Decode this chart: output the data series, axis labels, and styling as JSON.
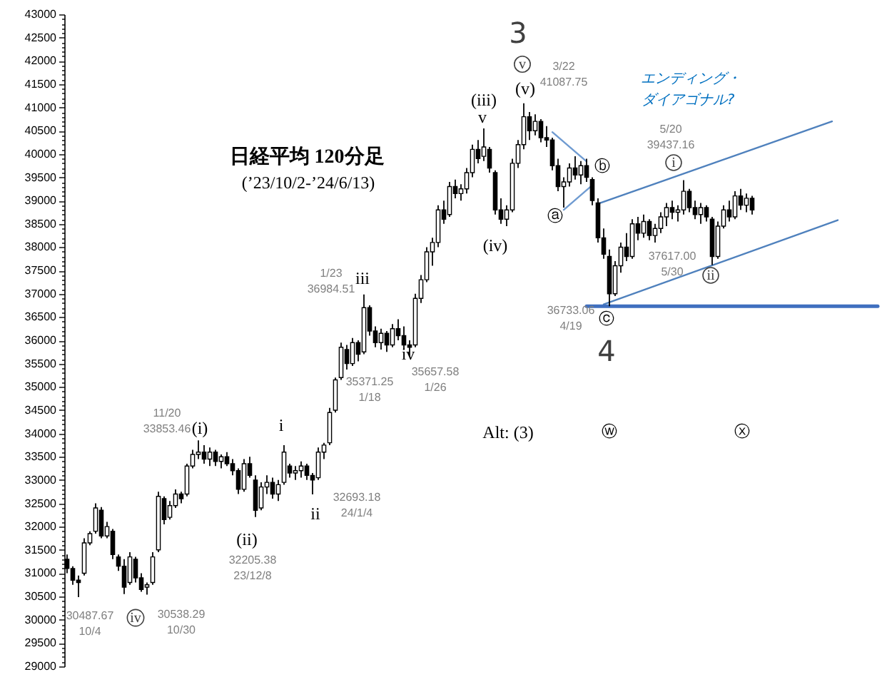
{
  "chart_data": {
    "type": "candlestick",
    "title": "日経平均 120分足",
    "subtitle": "(’23/10/2-’24/6/13)",
    "color": "#000000",
    "categories": [
      null,
      null,
      null,
      null,
      null,
      null,
      null,
      null,
      null,
      null,
      null,
      null,
      null,
      null,
      null,
      null,
      null,
      null,
      null,
      null,
      null,
      null,
      null,
      null,
      null,
      null,
      null,
      null,
      null,
      null,
      null,
      null,
      null,
      null,
      null,
      null,
      null,
      null,
      null,
      null,
      null,
      null,
      null,
      null,
      null,
      null,
      null,
      null,
      null,
      null,
      null,
      null,
      null,
      null,
      null,
      null,
      null,
      null,
      null,
      null,
      null,
      null,
      null,
      null,
      null,
      null,
      null,
      null,
      null,
      null,
      null,
      null,
      null,
      null,
      null,
      null,
      null,
      null,
      null,
      null,
      null,
      null,
      null,
      null,
      null,
      null,
      null,
      null,
      null,
      null,
      null,
      null,
      null,
      null,
      null,
      null,
      null,
      null,
      null,
      null,
      null,
      null,
      null,
      null,
      null,
      null,
      null,
      null,
      null,
      null,
      null,
      null,
      null,
      null,
      null,
      null,
      null,
      null,
      null,
      null,
      null,
      null,
      null,
      null,
      null,
      null,
      null,
      null,
      null,
      null,
      null,
      null,
      null,
      null,
      null,
      null,
      null,
      null,
      null,
      null,
      null,
      null,
      null
    ],
    "ohlc": [
      [
        31300,
        31400,
        31000,
        31100
      ],
      [
        31100,
        31150,
        30750,
        30850
      ],
      [
        30850,
        30950,
        30487.67,
        30800
      ],
      [
        31000,
        31750,
        30950,
        31650
      ],
      [
        31650,
        31900,
        31600,
        31850
      ],
      [
        31900,
        32500,
        31850,
        32400
      ],
      [
        32350,
        32420,
        31750,
        31800
      ],
      [
        31800,
        32100,
        31750,
        32000
      ],
      [
        31900,
        31950,
        31300,
        31400
      ],
      [
        31350,
        31400,
        31050,
        31150
      ],
      [
        31150,
        31300,
        30550,
        30700
      ],
      [
        30800,
        31450,
        30750,
        31350
      ],
      [
        31300,
        31350,
        30800,
        30900
      ],
      [
        30900,
        31000,
        30600,
        30650
      ],
      [
        30700,
        30800,
        30538.29,
        30750
      ],
      [
        30800,
        31450,
        30750,
        31350
      ],
      [
        31500,
        32750,
        31450,
        32650
      ],
      [
        32600,
        32650,
        32050,
        32150
      ],
      [
        32200,
        32550,
        32150,
        32450
      ],
      [
        32450,
        32800,
        32400,
        32700
      ],
      [
        32700,
        32750,
        32500,
        32600
      ],
      [
        32700,
        33350,
        32650,
        33300
      ],
      [
        33300,
        33650,
        33250,
        33550
      ],
      [
        33550,
        33853.46,
        33450,
        33600
      ],
      [
        33600,
        33750,
        33350,
        33450
      ],
      [
        33450,
        33700,
        33300,
        33600
      ],
      [
        33600,
        33650,
        33300,
        33400
      ],
      [
        33400,
        33550,
        33250,
        33500
      ],
      [
        33500,
        33600,
        33300,
        33350
      ],
      [
        33350,
        33450,
        33100,
        33200
      ],
      [
        33200,
        33250,
        32700,
        32800
      ],
      [
        32800,
        33450,
        32750,
        33350
      ],
      [
        33350,
        33500,
        33050,
        33100
      ],
      [
        33000,
        33100,
        32205.38,
        32350
      ],
      [
        32400,
        32950,
        32350,
        32850
      ],
      [
        32850,
        33100,
        32700,
        32950
      ],
      [
        32950,
        33050,
        32600,
        32700
      ],
      [
        32700,
        33000,
        32550,
        32900
      ],
      [
        32950,
        33750,
        32900,
        33600
      ],
      [
        33300,
        33350,
        33050,
        33150
      ],
      [
        33150,
        33300,
        33000,
        33200
      ],
      [
        33200,
        33400,
        33050,
        33300
      ],
      [
        33300,
        33350,
        33000,
        33100
      ],
      [
        33100,
        33150,
        32693.18,
        33000
      ],
      [
        33050,
        33700,
        33000,
        33600
      ],
      [
        33600,
        33800,
        33450,
        33750
      ],
      [
        33800,
        34550,
        33750,
        34450
      ],
      [
        34500,
        35200,
        34450,
        35150
      ],
      [
        35200,
        35950,
        35150,
        35850
      ],
      [
        35800,
        35900,
        35371.25,
        35500
      ],
      [
        35500,
        36050,
        35450,
        35950
      ],
      [
        35950,
        36000,
        35550,
        35700
      ],
      [
        35750,
        36984.51,
        35700,
        36700
      ],
      [
        36700,
        36750,
        36100,
        36200
      ],
      [
        36200,
        36300,
        35850,
        35950
      ],
      [
        35950,
        36250,
        35800,
        36150
      ],
      [
        36150,
        36200,
        35750,
        35900
      ],
      [
        35900,
        36350,
        35850,
        36250
      ],
      [
        36250,
        36450,
        36000,
        36100
      ],
      [
        36100,
        36300,
        35800,
        35900
      ],
      [
        35900,
        36000,
        35657.58,
        35850
      ],
      [
        35900,
        37000,
        35850,
        36900
      ],
      [
        36900,
        37400,
        36800,
        37300
      ],
      [
        37300,
        38000,
        37250,
        37900
      ],
      [
        37900,
        38200,
        37600,
        38100
      ],
      [
        38100,
        38900,
        38000,
        38800
      ],
      [
        38800,
        39000,
        38500,
        38600
      ],
      [
        38700,
        39400,
        38650,
        39300
      ],
      [
        39300,
        39450,
        39050,
        39150
      ],
      [
        39150,
        39350,
        39000,
        39250
      ],
      [
        39250,
        39700,
        39150,
        39600
      ],
      [
        39600,
        40200,
        39500,
        40100
      ],
      [
        40100,
        40300,
        39800,
        39900
      ],
      [
        39950,
        40550,
        39850,
        40150
      ],
      [
        40100,
        40150,
        39600,
        39700
      ],
      [
        39600,
        39650,
        38700,
        38800
      ],
      [
        38800,
        39050,
        38500,
        38600
      ],
      [
        38600,
        38900,
        38450,
        38800
      ],
      [
        38800,
        39900,
        38750,
        39800
      ],
      [
        39800,
        40300,
        39700,
        40200
      ],
      [
        40200,
        41087.75,
        40100,
        40800
      ],
      [
        40800,
        40900,
        40300,
        40500
      ],
      [
        40500,
        40850,
        40400,
        40700
      ],
      [
        40700,
        40750,
        40250,
        40350
      ],
      [
        40350,
        40600,
        40150,
        40300
      ],
      [
        40300,
        40350,
        39650,
        39750
      ],
      [
        39750,
        39900,
        39200,
        39300
      ],
      [
        39300,
        39500,
        38850,
        39400
      ],
      [
        39400,
        39800,
        39300,
        39700
      ],
      [
        39700,
        39950,
        39450,
        39550
      ],
      [
        39550,
        39850,
        39350,
        39750
      ],
      [
        39750,
        39900,
        39400,
        39500
      ],
      [
        39450,
        39500,
        38900,
        39000
      ],
      [
        38950,
        39050,
        38100,
        38200
      ],
      [
        38200,
        38400,
        37750,
        37850
      ],
      [
        37800,
        37950,
        36733.06,
        37000
      ],
      [
        37000,
        37700,
        36950,
        37600
      ],
      [
        37600,
        38100,
        37450,
        38000
      ],
      [
        38000,
        38300,
        37700,
        37800
      ],
      [
        37800,
        38600,
        37750,
        38500
      ],
      [
        38500,
        38650,
        38150,
        38300
      ],
      [
        38300,
        38700,
        38200,
        38550
      ],
      [
        38550,
        38600,
        38150,
        38250
      ],
      [
        38250,
        38500,
        38100,
        38400
      ],
      [
        38400,
        38750,
        38300,
        38650
      ],
      [
        38650,
        38950,
        38450,
        38850
      ],
      [
        38850,
        39000,
        38600,
        38750
      ],
      [
        38750,
        38900,
        38550,
        38800
      ],
      [
        38800,
        39437.16,
        38700,
        39200
      ],
      [
        39200,
        39250,
        38750,
        38850
      ],
      [
        38850,
        39000,
        38600,
        38700
      ],
      [
        38700,
        38950,
        38500,
        38850
      ],
      [
        38850,
        38900,
        38550,
        38650
      ],
      [
        38600,
        38650,
        37617.0,
        37800
      ],
      [
        37800,
        38550,
        37750,
        38450
      ],
      [
        38450,
        38900,
        38400,
        38800
      ],
      [
        38800,
        39000,
        38550,
        38650
      ],
      [
        38650,
        39200,
        38600,
        39100
      ],
      [
        39100,
        39250,
        38800,
        38900
      ],
      [
        38900,
        39150,
        38750,
        39050
      ],
      [
        39050,
        39100,
        38700,
        38800
      ],
      null,
      null,
      null,
      null,
      null,
      null,
      null,
      null,
      null,
      null,
      null,
      null,
      null,
      null,
      null,
      null,
      null,
      null,
      null,
      null,
      null,
      null
    ],
    "series": [
      {
        "type": "line",
        "color": "#4f81bd",
        "values": [
          null,
          null,
          null,
          null,
          null,
          null,
          null,
          null,
          null,
          null,
          null,
          null,
          null,
          null,
          null,
          null,
          null,
          null,
          null,
          null,
          null,
          null,
          null,
          null,
          null,
          null,
          null,
          null,
          null,
          null,
          null,
          null,
          null,
          null,
          null,
          null,
          null,
          null,
          null,
          null,
          null,
          null,
          null,
          null,
          null,
          null,
          null,
          null,
          null,
          null,
          null,
          null,
          null,
          null,
          null,
          null,
          null,
          null,
          null,
          null,
          null,
          null,
          null,
          null,
          null,
          null,
          null,
          null,
          null,
          null,
          null,
          null,
          null,
          null,
          null,
          null,
          null,
          null,
          null,
          null,
          null,
          null,
          null,
          null,
          null,
          null,
          null,
          null,
          null,
          null,
          null,
          null,
          null,
          38930,
          null,
          null,
          null,
          null,
          null,
          null,
          null,
          null,
          null,
          null,
          null,
          null,
          null,
          null,
          null,
          null,
          null,
          null,
          null,
          null,
          null,
          null,
          null,
          null,
          null,
          null,
          null,
          null,
          null,
          null,
          null,
          null,
          null,
          null,
          null,
          null,
          null,
          null,
          null,
          null,
          40700,
          null,
          null,
          null,
          null,
          null,
          null,
          null,
          null
        ]
      },
      {
        "type": "line",
        "color": "#4f81bd",
        "values": [
          null,
          null,
          null,
          null,
          null,
          null,
          null,
          null,
          null,
          null,
          null,
          null,
          null,
          null,
          null,
          null,
          null,
          null,
          null,
          null,
          null,
          null,
          null,
          null,
          null,
          null,
          null,
          null,
          null,
          null,
          null,
          null,
          null,
          null,
          null,
          null,
          null,
          null,
          null,
          null,
          null,
          null,
          null,
          null,
          null,
          null,
          null,
          null,
          null,
          null,
          null,
          null,
          null,
          null,
          null,
          null,
          null,
          null,
          null,
          null,
          null,
          null,
          null,
          null,
          null,
          null,
          null,
          null,
          null,
          null,
          null,
          null,
          null,
          null,
          null,
          null,
          null,
          null,
          null,
          null,
          null,
          null,
          null,
          null,
          null,
          null,
          null,
          null,
          null,
          null,
          null,
          null,
          null,
          null,
          36770,
          null,
          null,
          null,
          null,
          null,
          null,
          null,
          null,
          null,
          null,
          null,
          null,
          null,
          null,
          null,
          null,
          null,
          null,
          null,
          null,
          null,
          null,
          null,
          null,
          null,
          null,
          null,
          null,
          null,
          null,
          null,
          null,
          null,
          null,
          null,
          null,
          null,
          null,
          null,
          null,
          38580,
          null,
          null,
          null,
          null,
          null,
          null,
          null
        ]
      },
      {
        "type": "line",
        "color": "#3f6fbf",
        "values": [
          null,
          null,
          null,
          null,
          null,
          null,
          null,
          null,
          null,
          null,
          null,
          null,
          null,
          null,
          null,
          null,
          null,
          null,
          null,
          null,
          null,
          null,
          null,
          null,
          null,
          null,
          null,
          null,
          null,
          null,
          null,
          null,
          null,
          null,
          null,
          null,
          null,
          null,
          null,
          null,
          null,
          null,
          null,
          null,
          null,
          null,
          null,
          null,
          null,
          null,
          null,
          null,
          null,
          null,
          null,
          null,
          null,
          null,
          null,
          null,
          null,
          null,
          null,
          null,
          null,
          null,
          null,
          null,
          null,
          null,
          null,
          null,
          null,
          null,
          null,
          null,
          null,
          null,
          null,
          null,
          null,
          null,
          null,
          null,
          null,
          null,
          null,
          null,
          null,
          null,
          null,
          36730,
          null,
          null,
          null,
          null,
          null,
          null,
          null,
          null,
          null,
          null,
          null,
          null,
          null,
          null,
          null,
          null,
          null,
          null,
          null,
          null,
          null,
          null,
          null,
          null,
          null,
          null,
          null,
          null,
          null,
          null,
          null,
          null,
          null,
          null,
          null,
          null,
          null,
          null,
          null,
          null,
          null,
          null,
          null,
          null,
          null,
          null,
          null,
          null,
          null,
          null,
          36730
        ]
      },
      {
        "type": "line",
        "color": "#6f9bd1",
        "values": [
          null,
          null,
          null,
          null,
          null,
          null,
          null,
          null,
          null,
          null,
          null,
          null,
          null,
          null,
          null,
          null,
          null,
          null,
          null,
          null,
          null,
          null,
          null,
          null,
          null,
          null,
          null,
          null,
          null,
          null,
          null,
          null,
          null,
          null,
          null,
          null,
          null,
          null,
          null,
          null,
          null,
          null,
          null,
          null,
          null,
          null,
          null,
          null,
          null,
          null,
          null,
          null,
          null,
          null,
          null,
          null,
          null,
          null,
          null,
          null,
          null,
          null,
          null,
          null,
          null,
          null,
          null,
          null,
          null,
          null,
          null,
          null,
          null,
          null,
          null,
          null,
          null,
          null,
          null,
          null,
          null,
          null,
          null,
          null,
          null,
          40470,
          null,
          null,
          null,
          null,
          null,
          39840,
          null,
          null,
          null,
          null,
          null,
          null,
          null,
          null,
          null,
          null,
          null,
          null,
          null,
          null,
          null,
          null,
          null,
          null,
          null,
          null,
          null,
          null,
          null,
          null,
          null,
          null,
          null,
          null,
          null,
          null,
          null,
          null,
          null,
          null,
          null,
          null,
          null,
          null,
          null,
          null,
          null,
          null,
          null,
          null,
          null,
          null,
          null,
          null,
          null,
          null,
          null
        ]
      },
      {
        "type": "line",
        "color": "#6f9bd1",
        "values": [
          null,
          null,
          null,
          null,
          null,
          null,
          null,
          null,
          null,
          null,
          null,
          null,
          null,
          null,
          null,
          null,
          null,
          null,
          null,
          null,
          null,
          null,
          null,
          null,
          null,
          null,
          null,
          null,
          null,
          null,
          null,
          null,
          null,
          null,
          null,
          null,
          null,
          null,
          null,
          null,
          null,
          null,
          null,
          null,
          null,
          null,
          null,
          null,
          null,
          null,
          null,
          null,
          null,
          null,
          null,
          null,
          null,
          null,
          null,
          null,
          null,
          null,
          null,
          null,
          null,
          null,
          null,
          null,
          null,
          null,
          null,
          null,
          null,
          null,
          null,
          null,
          null,
          null,
          null,
          null,
          null,
          null,
          null,
          null,
          null,
          null,
          null,
          38800,
          null,
          null,
          null,
          null,
          39330,
          null,
          null,
          null,
          null,
          null,
          null,
          null,
          null,
          null,
          null,
          null,
          null,
          null,
          null,
          null,
          null,
          null,
          null,
          null,
          null,
          null,
          null,
          null,
          null,
          null,
          null,
          null,
          null,
          null,
          null,
          null,
          null,
          null,
          null,
          null,
          null,
          null,
          null,
          null,
          null,
          null,
          null,
          null,
          null,
          null,
          null,
          null,
          null,
          null,
          null
        ]
      }
    ],
    "ylim": [
      29000,
      43000
    ],
    "yticks": [
      29000,
      {
        "value": 29100,
        "label": null
      },
      {
        "value": 29200,
        "label": null
      },
      {
        "value": 29300,
        "label": null
      },
      {
        "value": 29400,
        "label": null
      },
      29500,
      {
        "value": 29600,
        "label": null
      },
      {
        "value": 29700,
        "label": null
      },
      {
        "value": 29800,
        "label": null
      },
      {
        "value": 29900,
        "label": null
      },
      30000,
      {
        "value": 30100,
        "label": null
      },
      {
        "value": 30200,
        "label": null
      },
      {
        "value": 30300,
        "label": null
      },
      {
        "value": 30400,
        "label": null
      },
      30500,
      {
        "value": 30600,
        "label": null
      },
      {
        "value": 30700,
        "label": null
      },
      {
        "value": 30800,
        "label": null
      },
      {
        "value": 30900,
        "label": null
      },
      31000,
      {
        "value": 31100,
        "label": null
      },
      {
        "value": 31200,
        "label": null
      },
      {
        "value": 31300,
        "label": null
      },
      {
        "value": 31400,
        "label": null
      },
      31500,
      {
        "value": 31600,
        "label": null
      },
      {
        "value": 31700,
        "label": null
      },
      {
        "value": 31800,
        "label": null
      },
      {
        "value": 31900,
        "label": null
      },
      32000,
      {
        "value": 32100,
        "label": null
      },
      {
        "value": 32200,
        "label": null
      },
      {
        "value": 32300,
        "label": null
      },
      {
        "value": 32400,
        "label": null
      },
      32500,
      {
        "value": 32600,
        "label": null
      },
      {
        "value": 32700,
        "label": null
      },
      {
        "value": 32800,
        "label": null
      },
      {
        "value": 32900,
        "label": null
      },
      33000,
      {
        "value": 33100,
        "label": null
      },
      {
        "value": 33200,
        "label": null
      },
      {
        "value": 33300,
        "label": null
      },
      {
        "value": 33400,
        "label": null
      },
      33500,
      {
        "value": 33600,
        "label": null
      },
      {
        "value": 33700,
        "label": null
      },
      {
        "value": 33800,
        "label": null
      },
      {
        "value": 33900,
        "label": null
      },
      34000,
      {
        "value": 34100,
        "label": null
      },
      {
        "value": 34200,
        "label": null
      },
      {
        "value": 34300,
        "label": null
      },
      {
        "value": 34400,
        "label": null
      },
      34500,
      {
        "value": 34600,
        "label": null
      },
      {
        "value": 34700,
        "label": null
      },
      {
        "value": 34800,
        "label": null
      },
      {
        "value": 34900,
        "label": null
      },
      35000,
      {
        "value": 35100,
        "label": null
      },
      {
        "value": 35200,
        "label": null
      },
      {
        "value": 35300,
        "label": null
      },
      {
        "value": 35400,
        "label": null
      },
      35500,
      {
        "value": 35600,
        "label": null
      },
      {
        "value": 35700,
        "label": null
      },
      {
        "value": 35800,
        "label": null
      },
      {
        "value": 35900,
        "label": null
      },
      36000,
      {
        "value": 36100,
        "label": null
      },
      {
        "value": 36200,
        "label": null
      },
      {
        "value": 36300,
        "label": null
      },
      {
        "value": 36400,
        "label": null
      },
      36500,
      {
        "value": 36600,
        "label": null
      },
      {
        "value": 36700,
        "label": null
      },
      {
        "value": 36800,
        "label": null
      },
      {
        "value": 36900,
        "label": null
      },
      37000,
      {
        "value": 37100,
        "label": null
      },
      {
        "value": 37200,
        "label": null
      },
      {
        "value": 37300,
        "label": null
      },
      {
        "value": 37400,
        "label": null
      },
      37500,
      {
        "value": 37600,
        "label": null
      },
      {
        "value": 37700,
        "label": null
      },
      {
        "value": 37800,
        "label": null
      },
      {
        "value": 37900,
        "label": null
      },
      38000,
      {
        "value": 38100,
        "label": null
      },
      {
        "value": 38200,
        "label": null
      },
      {
        "value": 38300,
        "label": null
      },
      {
        "value": 38400,
        "label": null
      },
      38500,
      {
        "value": 38600,
        "label": null
      },
      {
        "value": 38700,
        "label": null
      },
      {
        "value": 38800,
        "label": null
      },
      {
        "value": 38900,
        "label": null
      },
      39000,
      {
        "value": 39100,
        "label": null
      },
      {
        "value": 39200,
        "label": null
      },
      {
        "value": 39300,
        "label": null
      },
      {
        "value": 39400,
        "label": null
      },
      39500,
      {
        "value": 39600,
        "label": null
      },
      {
        "value": 39700,
        "label": null
      },
      {
        "value": 39800,
        "label": null
      },
      {
        "value": 39900,
        "label": null
      },
      40000,
      {
        "value": 40100,
        "label": null
      },
      {
        "value": 40200,
        "label": null
      },
      {
        "value": 40300,
        "label": null
      },
      {
        "value": 40400,
        "label": null
      },
      40500,
      {
        "value": 40600,
        "label": null
      },
      {
        "value": 40700,
        "label": null
      },
      {
        "value": 40800,
        "label": null
      },
      {
        "value": 40900,
        "label": null
      },
      41000,
      {
        "value": 41100,
        "label": null
      },
      {
        "value": 41200,
        "label": null
      },
      {
        "value": 41300,
        "label": null
      },
      {
        "value": 41400,
        "label": null
      },
      41500,
      {
        "value": 41600,
        "label": null
      },
      {
        "value": 41700,
        "label": null
      },
      {
        "value": 41800,
        "label": null
      },
      {
        "value": 41900,
        "label": null
      },
      42000,
      {
        "value": 42100,
        "label": null
      },
      {
        "value": 42200,
        "label": null
      },
      {
        "value": 42300,
        "label": null
      },
      {
        "value": 42400,
        "label": null
      },
      42500,
      {
        "value": 42600,
        "label": null
      },
      {
        "value": 42700,
        "label": null
      },
      {
        "value": 42800,
        "label": null
      },
      {
        "value": 42900,
        "label": null
      },
      43000
    ],
    "annotations": [
      "3",
      "v",
      "(v)",
      "3/22\n41087.75",
      "(iii)",
      "v",
      "(iv)",
      "ⓐ",
      "ⓑ",
      "ⓒ",
      "4",
      "36733.06\n4/19",
      "エンディング・",
      "ダイアゴナル?",
      "5/20\n39437.16",
      "i",
      "37617.00\n5/30",
      "ii",
      "Alt: (3)",
      "ⓦ",
      "ⓧ",
      "1/23\n36984.51",
      "iii",
      "35371.25\n1/18",
      "iv",
      "35657.58\n1/26",
      "i",
      "ii",
      "32693.18\n24/1/4",
      "11/20\n33853.46",
      "(i)",
      "(ii)",
      "32205.38\n23/12/8",
      "30487.67\n10/4",
      "iv",
      "30538.29\n10/30"
    ]
  }
}
